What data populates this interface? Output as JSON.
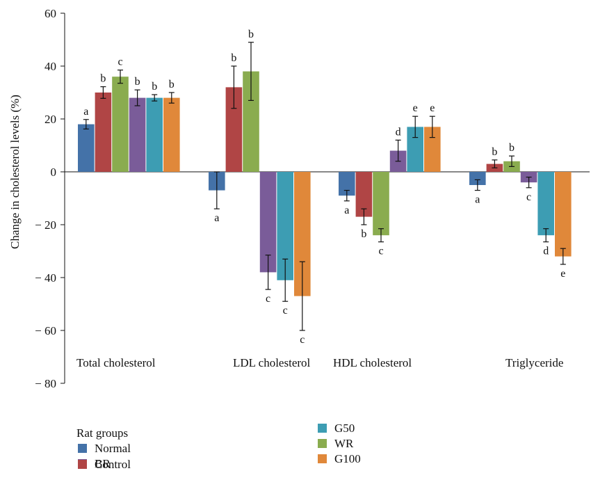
{
  "chart_data": {
    "type": "bar",
    "title": "",
    "xlabel": "",
    "ylabel": "Change in cholesterol levels (%)",
    "ylim": [
      -80,
      60
    ],
    "yticks": [
      60,
      40,
      20,
      0,
      -20,
      -40,
      -60,
      -80
    ],
    "ytick_labels": [
      "60",
      "40",
      "20",
      "0",
      "− 20",
      "− 40",
      "− 60",
      "− 80"
    ],
    "grid": false,
    "legend_title": "Rat groups",
    "legend_position": "bottom-left",
    "categories": [
      "Total cholesterol",
      "LDL cholesterol",
      "HDL cholesterol",
      "Triglyceride"
    ],
    "series": [
      {
        "name": "Normal",
        "color": "#4472a8",
        "values": [
          18,
          -7,
          -9,
          -5
        ],
        "errors": [
          1.8,
          7,
          2,
          2
        ],
        "sig": [
          "a",
          "a",
          "a",
          "a"
        ]
      },
      {
        "name": "Control",
        "color": "#b04545",
        "values": [
          30,
          32,
          -17,
          3
        ],
        "errors": [
          2.2,
          8,
          3,
          1.5
        ],
        "sig": [
          "b",
          "b",
          "b",
          "b"
        ]
      },
      {
        "name": "WR",
        "color": "#8aac4f",
        "values": [
          36,
          38,
          -24,
          4
        ],
        "errors": [
          2.5,
          11,
          2.5,
          2
        ],
        "sig": [
          "c",
          "b",
          "c",
          "b"
        ]
      },
      {
        "name": "BR",
        "color": "#7a5c99",
        "values": [
          28,
          -38,
          8,
          -4
        ],
        "errors": [
          3,
          6.5,
          4,
          2
        ],
        "sig": [
          "b",
          "c",
          "d",
          "c"
        ]
      },
      {
        "name": "G50",
        "color": "#3d9db3",
        "values": [
          28,
          -41,
          17,
          -24
        ],
        "errors": [
          1.2,
          8,
          4,
          2.5
        ],
        "sig": [
          "b",
          "c",
          "e",
          "d"
        ]
      },
      {
        "name": "G100",
        "color": "#e0883a",
        "values": [
          28,
          -47,
          17,
          -32
        ],
        "errors": [
          2,
          13,
          4,
          3
        ],
        "sig": [
          "b",
          "c",
          "e",
          "e"
        ]
      }
    ],
    "legend_order": [
      "Normal",
      "BR",
      "Control",
      "G50",
      "WR",
      "G100"
    ]
  }
}
